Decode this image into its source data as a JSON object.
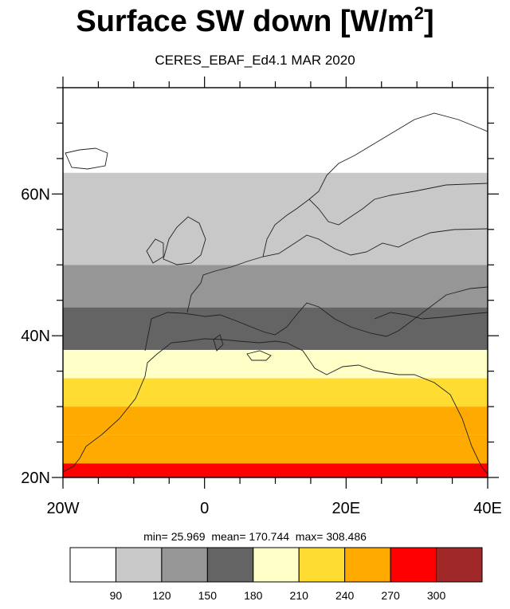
{
  "title": {
    "main": "Surface SW down [W/m",
    "sup": "2",
    "close": "]"
  },
  "subtitle": "CERES_EBAF_Ed4.1 MAR 2020",
  "stats": {
    "min_label": "min=",
    "min": "25.969",
    "mean_label": "mean=",
    "mean": "170.744",
    "max_label": "max=",
    "max": "308.486"
  },
  "map": {
    "lon_range": [
      -20,
      40
    ],
    "lat_range": [
      20,
      75
    ],
    "x_ticks": [
      {
        "lon": -20,
        "label": "20W"
      },
      {
        "lon": 0,
        "label": "0"
      },
      {
        "lon": 20,
        "label": "20E"
      },
      {
        "lon": 40,
        "label": "40E"
      }
    ],
    "y_ticks": [
      {
        "lat": 20,
        "label": "20N"
      },
      {
        "lat": 40,
        "label": "40N"
      },
      {
        "lat": 60,
        "label": "60N"
      }
    ],
    "bands": [
      {
        "lat_from": 20,
        "lat_to": 22,
        "bin": 7
      },
      {
        "lat_from": 22,
        "lat_to": 26,
        "bin": 6
      },
      {
        "lat_from": 26,
        "lat_to": 30,
        "bin": 6
      },
      {
        "lat_from": 30,
        "lat_to": 34,
        "bin": 5
      },
      {
        "lat_from": 34,
        "lat_to": 38,
        "bin": 4
      },
      {
        "lat_from": 38,
        "lat_to": 44,
        "bin": 3
      },
      {
        "lat_from": 44,
        "lat_to": 50,
        "bin": 2
      },
      {
        "lat_from": 50,
        "lat_to": 63,
        "bin": 1
      },
      {
        "lat_from": 63,
        "lat_to": 75,
        "bin": 0
      }
    ]
  },
  "colorbar": {
    "colors": [
      "#ffffff",
      "#c8c8c8",
      "#969696",
      "#646464",
      "#ffffc8",
      "#ffdc32",
      "#ffaa00",
      "#ff0000",
      "#a02828"
    ],
    "labels": [
      "90",
      "120",
      "150",
      "180",
      "210",
      "240",
      "270",
      "300"
    ]
  }
}
